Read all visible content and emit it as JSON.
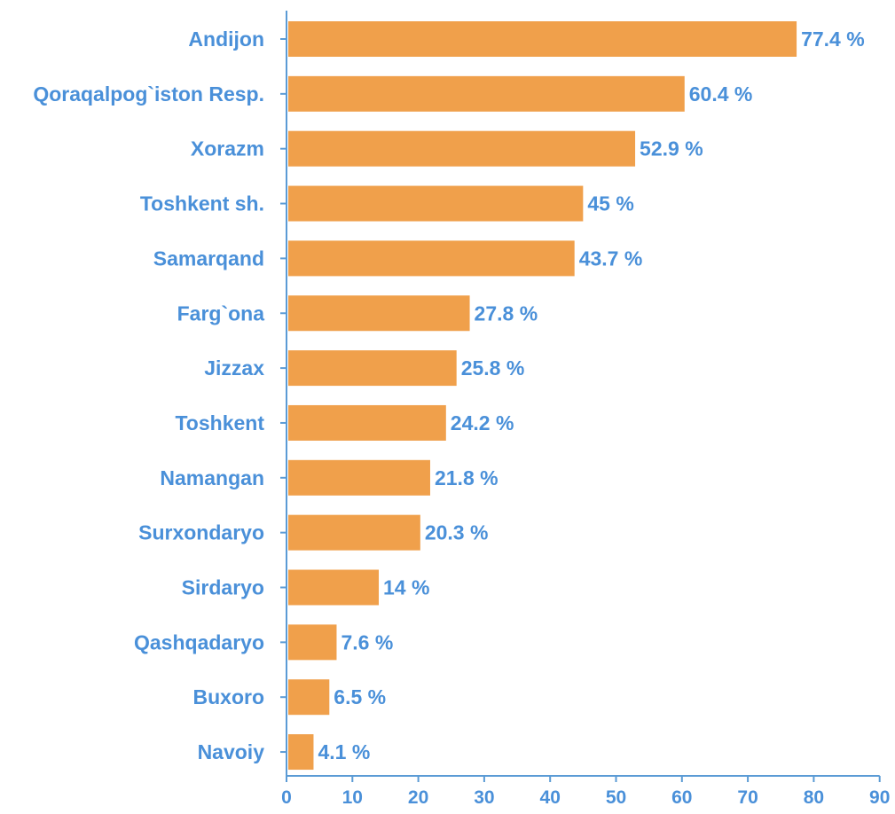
{
  "colors": {
    "bar": "#f0a04b",
    "axis": "#5b9bd5",
    "text": "#4a90d9"
  },
  "chart_data": {
    "type": "bar",
    "orientation": "horizontal",
    "title": "",
    "xlabel": "",
    "ylabel": "",
    "xlim": [
      0,
      90
    ],
    "x_ticks": [
      0,
      10,
      20,
      30,
      40,
      50,
      60,
      70,
      80,
      90
    ],
    "grid": false,
    "value_suffix": " %",
    "categories": [
      "Andijon",
      "Qoraqalpog`iston Resp.",
      "Xorazm",
      "Toshkent sh.",
      "Samarqand",
      "Farg`ona",
      "Jizzax",
      "Toshkent",
      "Namangan",
      "Surxondaryo",
      "Sirdaryo",
      "Qashqadaryo",
      "Buxoro",
      "Navoiy"
    ],
    "values": [
      77.4,
      60.4,
      52.9,
      45,
      43.7,
      27.8,
      25.8,
      24.2,
      21.8,
      20.3,
      14,
      7.6,
      6.5,
      4.1
    ],
    "value_labels": [
      "77.4 %",
      "60.4 %",
      "52.9 %",
      "45 %",
      "43.7 %",
      "27.8 %",
      "25.8 %",
      "24.2 %",
      "21.8 %",
      "20.3 %",
      "14 %",
      "7.6 %",
      "6.5 %",
      "4.1 %"
    ]
  }
}
